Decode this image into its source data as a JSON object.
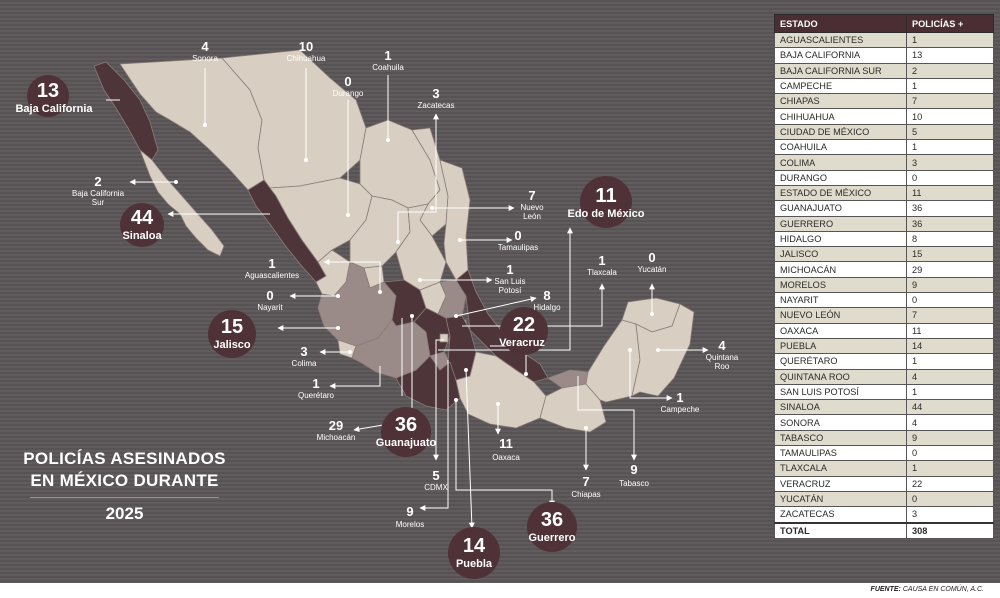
{
  "title": {
    "line1": "POLICÍAS ASESINADOS",
    "line2": "EN MÉXICO DURANTE",
    "line3": "2025"
  },
  "source": {
    "label": "FUENTE:",
    "text": "CAUSA EN COMÚN, A.C."
  },
  "colors": {
    "background": "#5b5657",
    "state_light": "#d8cfc2",
    "state_mid": "#9a8a88",
    "state_dark": "#4d3539",
    "bubble": "#4f3237",
    "table_header": "#4a2e33",
    "table_stripe": "#e0dccd"
  },
  "chart_data": {
    "type": "table",
    "columns": [
      "ESTADO",
      "POLICÍAS +"
    ],
    "rows": [
      [
        "AGUASCALIENTES",
        "1"
      ],
      [
        "BAJA CALIFORNIA",
        "13"
      ],
      [
        "BAJA CALIFORNIA SUR",
        "2"
      ],
      [
        "CAMPECHE",
        "1"
      ],
      [
        "CHIAPAS",
        "7"
      ],
      [
        "CHIHUAHUA",
        "10"
      ],
      [
        "CIUDAD DE MÉXICO",
        "5"
      ],
      [
        "COAHUILA",
        "1"
      ],
      [
        "COLIMA",
        "3"
      ],
      [
        "DURANGO",
        "0"
      ],
      [
        "ESTADO DE MÉXICO",
        "11"
      ],
      [
        "GUANAJUATO",
        "36"
      ],
      [
        "GUERRERO",
        "36"
      ],
      [
        "HIDALGO",
        "8"
      ],
      [
        "JALISCO",
        "15"
      ],
      [
        "MICHOACÁN",
        "29"
      ],
      [
        "MORELOS",
        "9"
      ],
      [
        "NAYARIT",
        "0"
      ],
      [
        "NUEVO LEÓN",
        "7"
      ],
      [
        "OAXACA",
        "11"
      ],
      [
        "PUEBLA",
        "14"
      ],
      [
        "QUERÉTARO",
        "1"
      ],
      [
        "QUINTANA ROO",
        "4"
      ],
      [
        "SAN LUIS POTOSÍ",
        "1"
      ],
      [
        "SINALOA",
        "44"
      ],
      [
        "SONORA",
        "4"
      ],
      [
        "TABASCO",
        "9"
      ],
      [
        "TAMAULIPAS",
        "0"
      ],
      [
        "TLAXCALA",
        "1"
      ],
      [
        "VERACRUZ",
        "22"
      ],
      [
        "YUCATÁN",
        "0"
      ],
      [
        "ZACATECAS",
        "3"
      ]
    ],
    "total": [
      "TOTAL",
      "308"
    ]
  },
  "map": {
    "bubbles": [
      {
        "id": "baja-california",
        "value": "13",
        "name": "Baja California"
      },
      {
        "id": "sinaloa",
        "value": "44",
        "name": "Sinaloa"
      },
      {
        "id": "jalisco",
        "value": "15",
        "name": "Jalisco"
      },
      {
        "id": "guanajuato",
        "value": "36",
        "name": "Guanajuato"
      },
      {
        "id": "puebla",
        "value": "14",
        "name": "Puebla"
      },
      {
        "id": "guerrero",
        "value": "36",
        "name": "Guerrero"
      },
      {
        "id": "veracruz",
        "value": "22",
        "name": "Veracruz"
      },
      {
        "id": "edomex",
        "value": "11",
        "name": "Edo de México"
      }
    ],
    "labels": [
      {
        "id": "sonora",
        "value": "4",
        "name": "Sonora"
      },
      {
        "id": "chihuahua",
        "value": "10",
        "name": "Chihuahua"
      },
      {
        "id": "coahuila",
        "value": "1",
        "name": "Coahuila"
      },
      {
        "id": "durango",
        "value": "0",
        "name": "Durango"
      },
      {
        "id": "zacatecas",
        "value": "3",
        "name": "Zacatecas"
      },
      {
        "id": "bcs",
        "value": "2",
        "name": "Baja California",
        "name2": "Sur"
      },
      {
        "id": "nuevo-leon",
        "value": "7",
        "name": "Nuevo",
        "name2": "León"
      },
      {
        "id": "tamaulipas",
        "value": "0",
        "name": "Tamaulipas"
      },
      {
        "id": "aguascalientes",
        "value": "1",
        "name": "Aguascalientes"
      },
      {
        "id": "slp",
        "value": "1",
        "name": "San Luis",
        "name2": "Potosí"
      },
      {
        "id": "nayarit",
        "value": "0",
        "name": "Nayarit"
      },
      {
        "id": "hidalgo",
        "value": "8",
        "name": "Hidalgo"
      },
      {
        "id": "tlaxcala",
        "value": "1",
        "name": "Tlaxcala"
      },
      {
        "id": "yucatan",
        "value": "0",
        "name": "Yucatán"
      },
      {
        "id": "quintana-roo",
        "value": "4",
        "name": "Quintana",
        "name2": "Roo"
      },
      {
        "id": "colima",
        "value": "3",
        "name": "Colima"
      },
      {
        "id": "queretaro",
        "value": "1",
        "name": "Querétaro"
      },
      {
        "id": "campeche",
        "value": "1",
        "name": "Campeche"
      },
      {
        "id": "michoacan",
        "value": "29",
        "name": "Michoacán"
      },
      {
        "id": "oaxaca",
        "value": "11",
        "name": "Oaxaca"
      },
      {
        "id": "tabasco",
        "value": "9",
        "name": "Tabasco"
      },
      {
        "id": "chiapas",
        "value": "7",
        "name": "Chiapas"
      },
      {
        "id": "cdmx",
        "value": "5",
        "name": "CDMX"
      },
      {
        "id": "morelos",
        "value": "9",
        "name": "Morelos"
      }
    ]
  }
}
